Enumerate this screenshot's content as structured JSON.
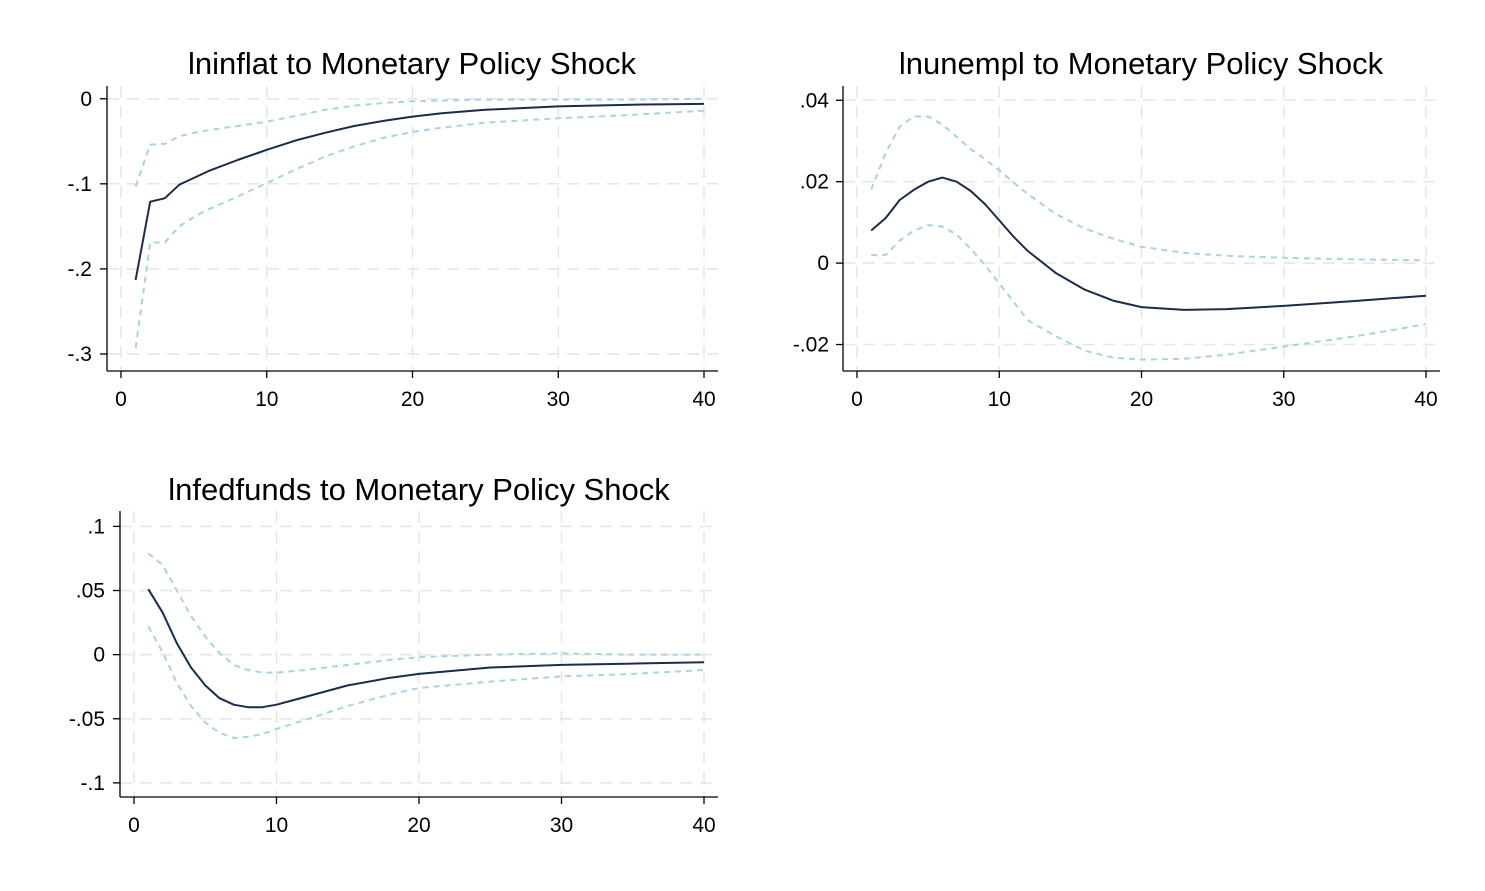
{
  "colors": {
    "irf": "#1a2b4c",
    "band": "#a8d3e3",
    "grid": "#e6e6e6"
  },
  "chart_data": [
    {
      "type": "line",
      "title": "lninflat to Monetary Policy Shock",
      "xlabel": "",
      "ylabel": "",
      "xlim": [
        0,
        40
      ],
      "ylim": [
        -0.32,
        0.015
      ],
      "xticks": [
        0,
        10,
        20,
        30,
        40
      ],
      "xtick_labels": [
        "0",
        "10",
        "20",
        "30",
        "40"
      ],
      "yticks": [
        0,
        -0.1,
        -0.2,
        -0.3
      ],
      "ytick_labels": [
        "0",
        "-.1",
        "-.2",
        "-.3"
      ],
      "grid": true,
      "legend": "none",
      "x": [
        1,
        2,
        3,
        4,
        5,
        6,
        8,
        10,
        12,
        14,
        16,
        18,
        20,
        22,
        25,
        30,
        35,
        40
      ],
      "series": [
        {
          "role": "irf",
          "values": [
            -0.213,
            -0.121,
            -0.117,
            -0.101,
            -0.093,
            -0.085,
            -0.072,
            -0.06,
            -0.049,
            -0.04,
            -0.032,
            -0.026,
            -0.021,
            -0.017,
            -0.013,
            -0.009,
            -0.007,
            -0.006
          ]
        },
        {
          "role": "upper",
          "values": [
            -0.103,
            -0.054,
            -0.053,
            -0.044,
            -0.04,
            -0.037,
            -0.032,
            -0.027,
            -0.02,
            -0.013,
            -0.008,
            -0.005,
            -0.003,
            -0.002,
            -0.001,
            -0.001,
            -0.001,
            0.0
          ]
        },
        {
          "role": "lower",
          "values": [
            -0.293,
            -0.169,
            -0.169,
            -0.15,
            -0.139,
            -0.13,
            -0.115,
            -0.099,
            -0.083,
            -0.068,
            -0.056,
            -0.046,
            -0.039,
            -0.034,
            -0.028,
            -0.023,
            -0.019,
            -0.014
          ]
        }
      ]
    },
    {
      "type": "line",
      "title": "lnunempl to Monetary Policy Shock",
      "xlabel": "",
      "ylabel": "",
      "xlim": [
        0,
        40
      ],
      "ylim": [
        -0.0265,
        0.0435
      ],
      "xticks": [
        0,
        10,
        20,
        30,
        40
      ],
      "xtick_labels": [
        "0",
        "10",
        "20",
        "30",
        "40"
      ],
      "yticks": [
        0.04,
        0.02,
        0,
        -0.02
      ],
      "ytick_labels": [
        ".04",
        ".02",
        "0",
        "-.02"
      ],
      "grid": true,
      "legend": "none",
      "x": [
        1,
        2,
        3,
        4,
        5,
        6,
        7,
        8,
        9,
        10,
        11,
        12,
        14,
        16,
        18,
        20,
        23,
        26,
        30,
        35,
        40
      ],
      "series": [
        {
          "role": "irf",
          "values": [
            0.008,
            0.011,
            0.0155,
            0.018,
            0.02,
            0.021,
            0.02,
            0.0177,
            0.0145,
            0.0105,
            0.0065,
            0.003,
            -0.0025,
            -0.0065,
            -0.0092,
            -0.0108,
            -0.0115,
            -0.0113,
            -0.0105,
            -0.0093,
            -0.008
          ]
        },
        {
          "role": "upper",
          "values": [
            0.018,
            0.027,
            0.0335,
            0.036,
            0.036,
            0.034,
            0.031,
            0.028,
            0.0255,
            0.0228,
            0.0198,
            0.017,
            0.012,
            0.0085,
            0.006,
            0.004,
            0.0025,
            0.0018,
            0.0013,
            0.0009,
            0.0007
          ]
        },
        {
          "role": "lower",
          "values": [
            0.002,
            0.002,
            0.0055,
            0.008,
            0.0093,
            0.009,
            0.007,
            0.0035,
            -0.0005,
            -0.005,
            -0.0095,
            -0.014,
            -0.018,
            -0.0215,
            -0.0232,
            -0.0237,
            -0.0235,
            -0.0225,
            -0.0205,
            -0.018,
            -0.015
          ]
        }
      ]
    },
    {
      "type": "line",
      "title": "lnfedfunds to Monetary Policy Shock",
      "xlabel": "",
      "ylabel": "",
      "xlim": [
        0,
        40
      ],
      "ylim": [
        -0.111,
        0.112
      ],
      "xticks": [
        0,
        10,
        20,
        30,
        40
      ],
      "xtick_labels": [
        "0",
        "10",
        "20",
        "30",
        "40"
      ],
      "yticks": [
        0.1,
        0.05,
        0,
        -0.05,
        -0.1
      ],
      "ytick_labels": [
        ".1",
        ".05",
        "0",
        "-.05",
        "-.1"
      ],
      "grid": true,
      "legend": "none",
      "x": [
        1,
        2,
        3,
        4,
        5,
        6,
        7,
        8,
        9,
        10,
        12,
        15,
        18,
        20,
        25,
        30,
        35,
        40
      ],
      "series": [
        {
          "role": "irf",
          "values": [
            0.051,
            0.033,
            0.009,
            -0.01,
            -0.024,
            -0.034,
            -0.039,
            -0.041,
            -0.041,
            -0.039,
            -0.033,
            -0.024,
            -0.018,
            -0.015,
            -0.01,
            -0.008,
            -0.007,
            -0.006
          ]
        },
        {
          "role": "upper",
          "values": [
            0.079,
            0.07,
            0.05,
            0.03,
            0.014,
            0.001,
            -0.008,
            -0.012,
            -0.014,
            -0.014,
            -0.012,
            -0.008,
            -0.004,
            -0.002,
            0.0,
            0.001,
            0.0,
            0.0
          ]
        },
        {
          "role": "lower",
          "values": [
            0.022,
            0.002,
            -0.022,
            -0.04,
            -0.053,
            -0.061,
            -0.065,
            -0.064,
            -0.062,
            -0.058,
            -0.051,
            -0.04,
            -0.031,
            -0.026,
            -0.021,
            -0.017,
            -0.015,
            -0.012
          ]
        }
      ]
    }
  ]
}
